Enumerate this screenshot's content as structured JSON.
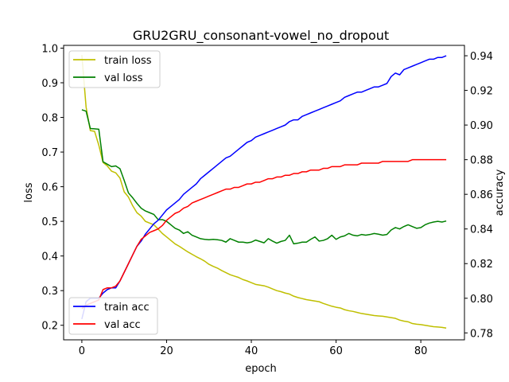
{
  "chart_data": {
    "type": "line",
    "title": "GRU2GRU_consonant-vowel_no_dropout",
    "xlabel": "epoch",
    "ylabel_left": "loss",
    "ylabel_right": "accuracy",
    "xlim": [
      -4.3,
      90.3
    ],
    "ylim_left": [
      0.158,
      1.008
    ],
    "ylim_right": [
      0.776,
      0.946
    ],
    "x_ticks": [
      0,
      20,
      40,
      60,
      80
    ],
    "x_tick_labels": [
      "0",
      "20",
      "40",
      "60",
      "80"
    ],
    "y_left_ticks": [
      0.2,
      0.3,
      0.4,
      0.5,
      0.6,
      0.7,
      0.8,
      0.9,
      1.0
    ],
    "y_left_tick_labels": [
      "0.2",
      "0.3",
      "0.4",
      "0.5",
      "0.6",
      "0.7",
      "0.8",
      "0.9",
      "1.0"
    ],
    "y_right_ticks": [
      0.78,
      0.8,
      0.82,
      0.84,
      0.86,
      0.88,
      0.9,
      0.92,
      0.94
    ],
    "y_right_tick_labels": [
      "0.78",
      "0.80",
      "0.82",
      "0.84",
      "0.86",
      "0.88",
      "0.90",
      "0.92",
      "0.94"
    ],
    "grid": false,
    "legend_loss": {
      "placement": "upper-left",
      "entries": [
        "train loss",
        "val loss"
      ]
    },
    "legend_acc": {
      "placement": "lower-left",
      "entries": [
        "train acc",
        "val acc"
      ]
    },
    "series": [
      {
        "name": "train loss",
        "axis": "left",
        "color": "#bfbf00",
        "values": [
          0.98,
          0.83,
          0.762,
          0.76,
          0.72,
          0.67,
          0.66,
          0.645,
          0.64,
          0.625,
          0.585,
          0.57,
          0.545,
          0.525,
          0.515,
          0.5,
          0.495,
          0.49,
          0.478,
          0.465,
          0.455,
          0.445,
          0.435,
          0.428,
          0.42,
          0.412,
          0.405,
          0.398,
          0.392,
          0.385,
          0.376,
          0.37,
          0.365,
          0.358,
          0.352,
          0.346,
          0.342,
          0.338,
          0.332,
          0.328,
          0.323,
          0.318,
          0.316,
          0.314,
          0.31,
          0.305,
          0.3,
          0.297,
          0.293,
          0.29,
          0.284,
          0.28,
          0.277,
          0.274,
          0.272,
          0.27,
          0.268,
          0.263,
          0.259,
          0.255,
          0.252,
          0.25,
          0.245,
          0.242,
          0.24,
          0.237,
          0.234,
          0.232,
          0.23,
          0.228,
          0.227,
          0.226,
          0.224,
          0.222,
          0.22,
          0.215,
          0.212,
          0.21,
          0.205,
          0.203,
          0.202,
          0.2,
          0.198,
          0.196,
          0.195,
          0.194,
          0.192
        ]
      },
      {
        "name": "val loss",
        "axis": "left",
        "color": "#008000",
        "values": [
          0.822,
          0.818,
          0.768,
          0.767,
          0.766,
          0.672,
          0.665,
          0.658,
          0.66,
          0.652,
          0.618,
          0.582,
          0.568,
          0.552,
          0.538,
          0.53,
          0.525,
          0.52,
          0.505,
          0.505,
          0.5,
          0.49,
          0.48,
          0.475,
          0.465,
          0.47,
          0.46,
          0.455,
          0.45,
          0.448,
          0.447,
          0.448,
          0.447,
          0.445,
          0.44,
          0.45,
          0.445,
          0.44,
          0.44,
          0.438,
          0.44,
          0.446,
          0.442,
          0.438,
          0.45,
          0.443,
          0.437,
          0.442,
          0.445,
          0.46,
          0.435,
          0.437,
          0.44,
          0.44,
          0.448,
          0.455,
          0.443,
          0.445,
          0.45,
          0.46,
          0.448,
          0.455,
          0.458,
          0.465,
          0.46,
          0.458,
          0.462,
          0.46,
          0.462,
          0.465,
          0.463,
          0.46,
          0.462,
          0.475,
          0.482,
          0.478,
          0.485,
          0.49,
          0.485,
          0.48,
          0.482,
          0.49,
          0.495,
          0.498,
          0.5,
          0.498,
          0.501
        ]
      },
      {
        "name": "train acc",
        "axis": "right",
        "color": "#0000ff",
        "values": [
          0.788,
          0.798,
          0.8,
          0.8,
          0.8,
          0.803,
          0.805,
          0.806,
          0.806,
          0.81,
          0.815,
          0.82,
          0.825,
          0.83,
          0.833,
          0.837,
          0.84,
          0.843,
          0.845,
          0.848,
          0.851,
          0.853,
          0.855,
          0.857,
          0.86,
          0.862,
          0.864,
          0.866,
          0.869,
          0.871,
          0.873,
          0.875,
          0.877,
          0.879,
          0.881,
          0.882,
          0.884,
          0.886,
          0.888,
          0.89,
          0.891,
          0.893,
          0.894,
          0.895,
          0.896,
          0.897,
          0.898,
          0.899,
          0.9,
          0.902,
          0.903,
          0.903,
          0.905,
          0.906,
          0.907,
          0.908,
          0.909,
          0.91,
          0.911,
          0.912,
          0.913,
          0.914,
          0.916,
          0.917,
          0.918,
          0.919,
          0.919,
          0.92,
          0.921,
          0.922,
          0.922,
          0.923,
          0.924,
          0.928,
          0.93,
          0.929,
          0.932,
          0.933,
          0.934,
          0.935,
          0.936,
          0.937,
          0.938,
          0.938,
          0.939,
          0.939,
          0.94
        ]
      },
      {
        "name": "val acc",
        "axis": "right",
        "color": "#ff0000",
        "values": [
          0.794,
          0.796,
          0.797,
          0.798,
          0.799,
          0.805,
          0.806,
          0.806,
          0.807,
          0.81,
          0.815,
          0.82,
          0.825,
          0.83,
          0.834,
          0.836,
          0.838,
          0.839,
          0.84,
          0.842,
          0.845,
          0.847,
          0.849,
          0.85,
          0.852,
          0.853,
          0.855,
          0.856,
          0.857,
          0.858,
          0.859,
          0.86,
          0.861,
          0.862,
          0.863,
          0.863,
          0.864,
          0.864,
          0.865,
          0.866,
          0.866,
          0.867,
          0.867,
          0.868,
          0.869,
          0.869,
          0.87,
          0.87,
          0.871,
          0.871,
          0.872,
          0.872,
          0.873,
          0.873,
          0.874,
          0.874,
          0.874,
          0.875,
          0.875,
          0.876,
          0.876,
          0.876,
          0.877,
          0.877,
          0.877,
          0.877,
          0.878,
          0.878,
          0.878,
          0.878,
          0.878,
          0.879,
          0.879,
          0.879,
          0.879,
          0.879,
          0.879,
          0.879,
          0.88,
          0.88,
          0.88,
          0.88,
          0.88,
          0.88,
          0.88,
          0.88,
          0.88
        ]
      }
    ]
  }
}
